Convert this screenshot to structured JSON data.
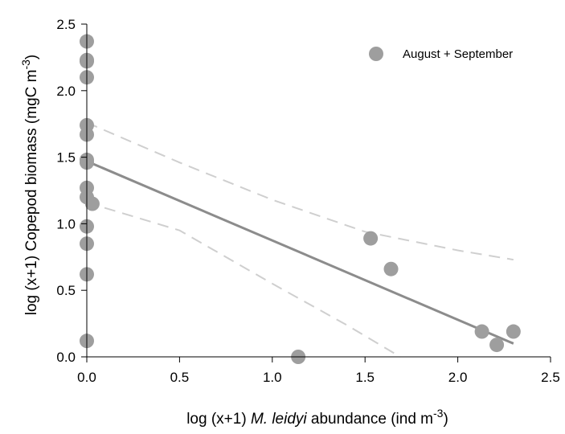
{
  "chart_data": {
    "type": "scatter",
    "xlabel_pre": "log (x+1) ",
    "xlabel_italic": "M. leidyi",
    "xlabel_post": " abundance (ind m",
    "xlabel_sup": "-3",
    "xlabel_close": ")",
    "ylabel_pre": "log (x+1) Copepod biomass (mgC m",
    "ylabel_sup": "-3",
    "ylabel_close": ")",
    "xlim": [
      0,
      2.5
    ],
    "ylim": [
      0,
      2.5
    ],
    "xticks": [
      "0.0",
      "0.5",
      "1.0",
      "1.5",
      "2.0",
      "2.5"
    ],
    "yticks": [
      "0.0",
      "0.5",
      "1.0",
      "1.5",
      "2.0",
      "2.5"
    ],
    "grid": false,
    "legend_position": "top-right",
    "series": [
      {
        "name": "August + September",
        "color": "#9e9e9e",
        "points": [
          [
            0,
            2.37
          ],
          [
            0,
            2.23
          ],
          [
            0,
            2.22
          ],
          [
            0,
            2.1
          ],
          [
            0,
            1.74
          ],
          [
            0,
            1.67
          ],
          [
            0,
            1.48
          ],
          [
            0,
            1.46
          ],
          [
            0,
            1.27
          ],
          [
            0,
            1.2
          ],
          [
            0.03,
            1.15
          ],
          [
            0,
            0.98
          ],
          [
            0,
            0.85
          ],
          [
            0,
            0.62
          ],
          [
            0,
            0.12
          ],
          [
            1.14,
            0.0
          ],
          [
            1.53,
            0.89
          ],
          [
            1.64,
            0.66
          ],
          [
            2.13,
            0.19
          ],
          [
            2.21,
            0.09
          ],
          [
            2.3,
            0.19
          ]
        ]
      }
    ],
    "regression_line": {
      "color": "#8c8c8c",
      "points": [
        [
          0,
          1.47
        ],
        [
          2.3,
          0.1
        ]
      ]
    },
    "confidence_band": {
      "color": "#cfcfcf",
      "upper": [
        [
          0,
          1.76
        ],
        [
          0.5,
          1.46
        ],
        [
          1.0,
          1.18
        ],
        [
          1.5,
          0.94
        ],
        [
          2.0,
          0.8
        ],
        [
          2.3,
          0.73
        ]
      ],
      "lower": [
        [
          0,
          1.16
        ],
        [
          0.5,
          0.95
        ],
        [
          1.0,
          0.55
        ],
        [
          1.4,
          0.24
        ],
        [
          1.69,
          0.0
        ]
      ]
    }
  }
}
